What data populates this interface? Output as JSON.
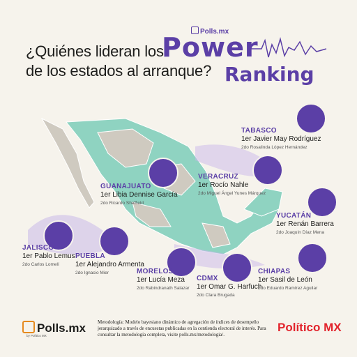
{
  "header": {
    "brand_small": "Polls.mx",
    "title_line1": "¿Quiénes lideran los",
    "title_line2": "de los estados al arranque?",
    "power": "Power",
    "ranking": "Ranking"
  },
  "states": [
    {
      "key": "tabasco",
      "state": "TABASCO",
      "first": "1er Javier May Rodríguez",
      "second": "2do Rosalinda López Hernández"
    },
    {
      "key": "guanajuato",
      "state": "GUANAJUATO",
      "first": "1er  Libia Dennise García",
      "second": "2do Ricardo Sheffield"
    },
    {
      "key": "veracruz",
      "state": "VERACRUZ",
      "first": "1er Rocío Nahle",
      "second": "2do Miguel Ángel Yunes Márquez"
    },
    {
      "key": "yucatan",
      "state": "YUCATÁN",
      "first": "1er Renán Barrera",
      "second": "2do Joaquín Díaz Mena"
    },
    {
      "key": "jalisco",
      "state": "JALISCO",
      "first": "1er Pablo Lemus",
      "second": "2do Carlos Lomelí"
    },
    {
      "key": "puebla",
      "state": "PUEBLA",
      "first": "1er Alejandro Armenta",
      "second": "2do Ignacio Mier"
    },
    {
      "key": "morelos",
      "state": "MORELOS",
      "first": "1er Lucía Meza",
      "second": "2do Rabindranath Salazar"
    },
    {
      "key": "cdmx",
      "state": "CDMX",
      "first": "1er Omar G. Harfuch",
      "second": "2do Clara Brugada"
    },
    {
      "key": "chiapas",
      "state": "CHIAPAS",
      "first": "1er Sasil de León",
      "second": "2do Eduardo Ramírez Aguilar"
    }
  ],
  "footer": {
    "polls_logo": "Polls.mx",
    "polls_sub": "by Político MX",
    "methodology": "Metodología: Modelo bayesiano dinámico de agregación de índices de desempeño jerarquizado a través de encuestas publicadas en la contienda electoral de interés. Para consultar la metodología completa, visite polls.mx/metodologia/.",
    "politico": "Político MX"
  },
  "colors": {
    "accent": "#5b3fa6",
    "map_teal": "#8fd3c1",
    "map_grey": "#cfcac0",
    "background": "#f6f3ec",
    "politico_red": "#e2232c"
  }
}
